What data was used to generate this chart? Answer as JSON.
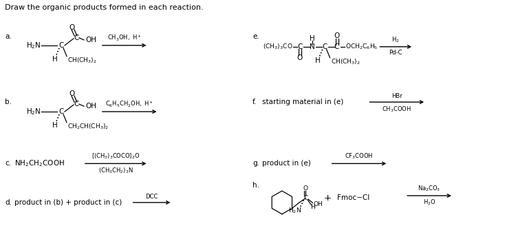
{
  "title": "Draw the organic products formed in each reaction.",
  "bg_color": "#ffffff",
  "text_color": "#000000",
  "figsize": [
    7.34,
    3.28
  ],
  "dpi": 100,
  "fs": 7.5,
  "fsm": 6.5,
  "sections": {
    "a_label": "a.",
    "b_label": "b.",
    "c_label": "c.",
    "d_label": "d.",
    "e_label": "e.",
    "f_label": "f.",
    "g_label": "g.",
    "h_label": "h.",
    "a_arrow_top": "CH$_3$OH, H$^+$",
    "b_arrow_top": "C$_6$H$_5$CH$_2$OH, H$^+$",
    "c_reagent": "NH$_2$CH$_2$COOH",
    "c_arrow_top": "[(CH$_3$)$_3$COCO]$_2$O",
    "c_arrow_bot": "(CH$_3$CH$_2$)$_3$N",
    "d_text": "product in (b) + product in (c)",
    "d_arrow_top": "DCC",
    "e_boc": "(CH$_3$)$_3$CO",
    "e_och": "OCH$_2$C$_6$H$_5$",
    "e_ch": "CH(CH$_3$)$_2$",
    "e_arrow_top": "H$_2$",
    "e_arrow_bot": "Pd-C",
    "f_text": "starting material in (e)",
    "f_arrow_top": "HBr",
    "f_arrow_bot": "CH$_3$COOH",
    "g_text": "product in (e)",
    "g_arrow_top": "CF$_3$COOH",
    "h_fmoc": "Fmoc−Cl",
    "h_arrow_top": "Na$_2$CO$_3$",
    "h_arrow_bot": "H$_2$O"
  }
}
